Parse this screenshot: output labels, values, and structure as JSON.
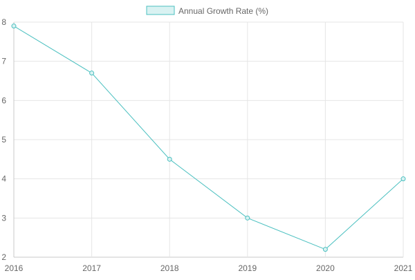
{
  "chart_data": {
    "type": "line",
    "x": [
      "2016",
      "2017",
      "2018",
      "2019",
      "2020",
      "2021"
    ],
    "series": [
      {
        "name": "Annual Growth Rate (%)",
        "values": [
          7.9,
          6.7,
          4.5,
          3.0,
          2.2,
          4.0
        ]
      }
    ],
    "title": "",
    "xlabel": "",
    "ylabel": "",
    "ylim": [
      2,
      8
    ],
    "yticks": [
      "2",
      "3",
      "4",
      "5",
      "6",
      "7",
      "8"
    ],
    "grid": true,
    "legend": "top-center",
    "colors": {
      "line": "#4bc0c0",
      "fill": "#d9f2f2",
      "grid": "#e5e5e5",
      "text": "#666666"
    }
  }
}
